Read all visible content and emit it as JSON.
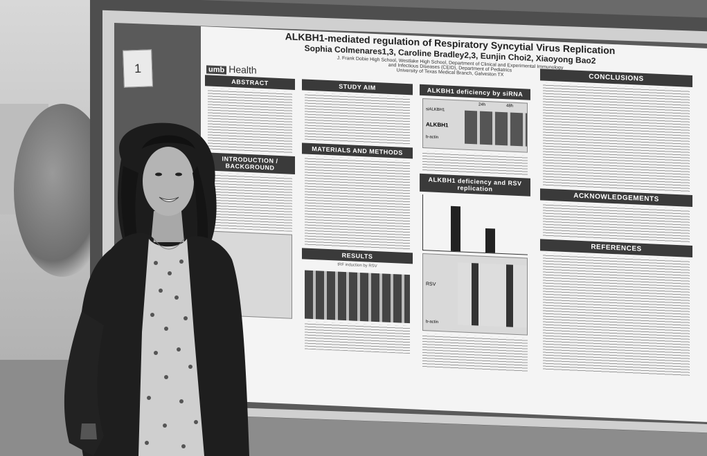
{
  "sticky_number": "1",
  "poster": {
    "logo_badge": "umb",
    "logo_text": "Health",
    "title": "ALKBH1-mediated regulation of Respiratory Syncytial Virus Replication",
    "authors": "Sophia Colmenares1,3, Caroline Bradley2,3, Eunjin Choi2, Xiaoyong Bao2",
    "affiliation_1": "J. Frank Dobie High School, Westlake High School, Department of Clinical and Experimental Immunology",
    "affiliation_2": "and Infectious Diseases (CEID), Department of Pediatrics",
    "affiliation_3": "University of Texas Medical Branch, Galveston TX",
    "sections": {
      "abstract": "ABSTRACT",
      "intro": "INTRODUCTION / BACKGROUND",
      "study_aim": "STUDY AIM",
      "materials": "MATERIALS AND METHODS",
      "results": "RESULTS",
      "results_sub": "tRF induction by RSV",
      "alkbh1_sirna": "ALKBH1 deficiency by siRNA",
      "alkbh1_rsv": "ALKBH1 deficiency and RSV replication",
      "conclusions": "CONCLUSIONS",
      "acknowledgements": "ACKNOWLEDGEMENTS",
      "references": "REFERENCES"
    },
    "blot_labels": {
      "sirna": "siALKBH1",
      "h24": "24h",
      "h48": "48h",
      "alkbh1": "ALKBH1",
      "bactin": "b-actin",
      "rsv": "RSV",
      "bactin2": "b-actin"
    }
  }
}
